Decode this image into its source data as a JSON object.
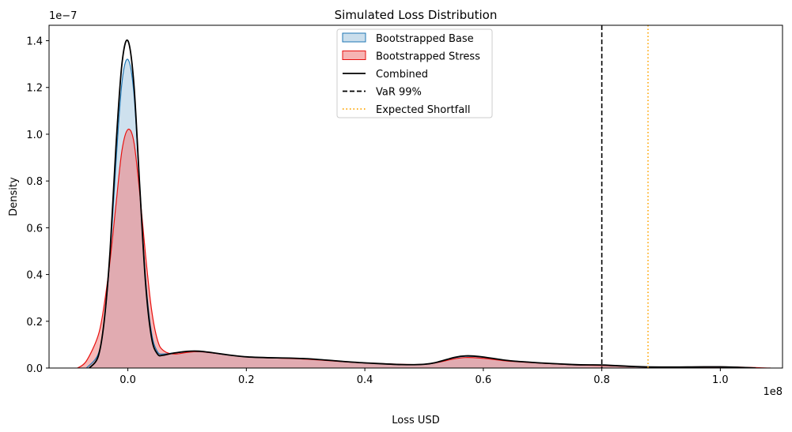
{
  "chart_data": {
    "type": "area",
    "title": "Simulated Loss Distribution",
    "xlabel": "Loss USD",
    "ylabel": "Density",
    "x_scale_label": "1e8",
    "y_scale_label": "1e−7",
    "x_scale": 100000000.0,
    "y_scale": 1e-07,
    "xlim": [
      -0.133,
      1.105
    ],
    "ylim": [
      0,
      1.466
    ],
    "x_ticks": [
      0.0,
      0.2,
      0.4,
      0.6,
      0.8,
      1.0
    ],
    "x_tick_labels": [
      "0.0",
      "0.2",
      "0.4",
      "0.6",
      "0.8",
      "1.0"
    ],
    "y_ticks": [
      0.0,
      0.2,
      0.4,
      0.6,
      0.8,
      1.0,
      1.2,
      1.4
    ],
    "y_tick_labels": [
      "0.0",
      "0.2",
      "0.4",
      "0.6",
      "0.8",
      "1.0",
      "1.2",
      "1.4"
    ],
    "legend_position": "upper-center",
    "series": [
      {
        "name": "Bootstrapped Base",
        "style": "filled-kde",
        "line_color": "#1f77b4",
        "fill_color": "#a6c8e0",
        "x": [
          -0.07,
          -0.05,
          -0.04,
          -0.03,
          -0.02,
          -0.01,
          0.0,
          0.01,
          0.02,
          0.03,
          0.04,
          0.05,
          0.06,
          0.08,
          0.12,
          0.2,
          0.3,
          0.4,
          0.5,
          0.57,
          0.65,
          0.75,
          0.8,
          0.85,
          0.9,
          1.0,
          1.06
        ],
        "y": [
          0.0,
          0.06,
          0.2,
          0.48,
          0.88,
          1.22,
          1.32,
          1.18,
          0.78,
          0.38,
          0.15,
          0.07,
          0.06,
          0.065,
          0.07,
          0.048,
          0.04,
          0.022,
          0.016,
          0.05,
          0.03,
          0.014,
          0.012,
          0.006,
          0.004,
          0.005,
          0.0
        ]
      },
      {
        "name": "Bootstrapped Stress",
        "style": "filled-kde",
        "line_color": "#e8110f",
        "fill_color": "#f08080",
        "x": [
          -0.085,
          -0.07,
          -0.05,
          -0.04,
          -0.03,
          -0.02,
          -0.01,
          0.0,
          0.01,
          0.02,
          0.03,
          0.04,
          0.05,
          0.06,
          0.08,
          0.12,
          0.2,
          0.3,
          0.4,
          0.5,
          0.57,
          0.65,
          0.75,
          0.8,
          0.85,
          0.9,
          1.0,
          1.085
        ],
        "y": [
          0.0,
          0.03,
          0.14,
          0.27,
          0.46,
          0.7,
          0.93,
          1.02,
          0.97,
          0.75,
          0.48,
          0.25,
          0.12,
          0.075,
          0.06,
          0.07,
          0.048,
          0.038,
          0.022,
          0.016,
          0.045,
          0.028,
          0.014,
          0.011,
          0.006,
          0.004,
          0.005,
          0.0
        ]
      },
      {
        "name": "Combined",
        "style": "line",
        "line_color": "#000000",
        "x": [
          -0.065,
          -0.05,
          -0.04,
          -0.03,
          -0.02,
          -0.01,
          0.0,
          0.01,
          0.02,
          0.03,
          0.04,
          0.05,
          0.06,
          0.08,
          0.12,
          0.2,
          0.3,
          0.4,
          0.5,
          0.57,
          0.65,
          0.75,
          0.8,
          0.85,
          0.9,
          1.0,
          1.06
        ],
        "y": [
          0.0,
          0.05,
          0.2,
          0.5,
          0.95,
          1.3,
          1.4,
          1.22,
          0.78,
          0.36,
          0.13,
          0.06,
          0.055,
          0.065,
          0.072,
          0.048,
          0.04,
          0.022,
          0.016,
          0.052,
          0.03,
          0.015,
          0.013,
          0.007,
          0.004,
          0.005,
          0.0
        ]
      }
    ],
    "vlines": [
      {
        "name": "VaR 99%",
        "x": 0.8,
        "color": "#000000",
        "style": "dashed"
      },
      {
        "name": "Expected Shortfall",
        "x": 0.878,
        "color": "#ffa500",
        "style": "dotted"
      }
    ]
  }
}
